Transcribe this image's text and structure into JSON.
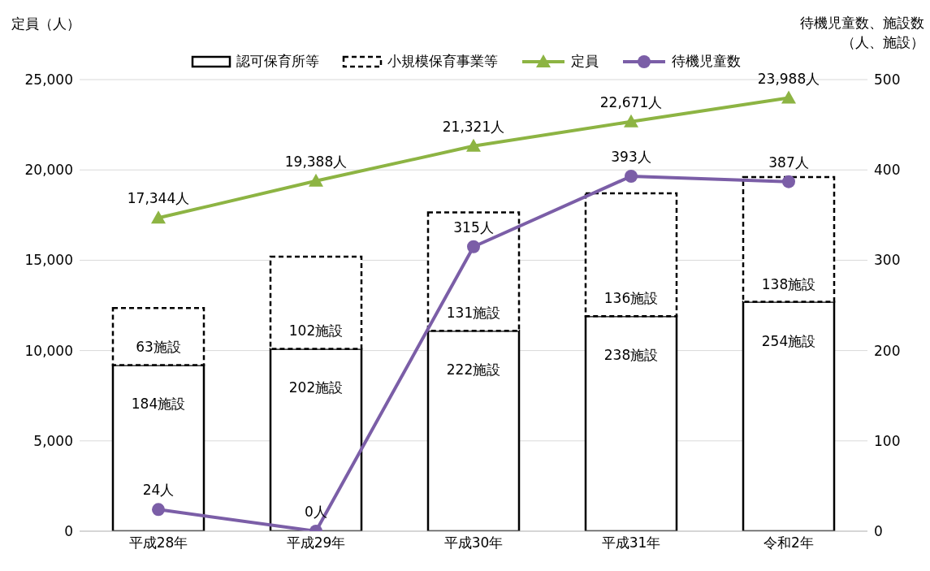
{
  "chart_data": {
    "type": "bar",
    "ylabel": "定員（人）",
    "y2label": "待機児童数、施設数（人、施設）",
    "categories": [
      "平成28年",
      "平成29年",
      "平成30年",
      "平成31年",
      "令和2年"
    ],
    "stacked": true,
    "grid": "y",
    "legend": "top",
    "ylim": [
      0,
      25000
    ],
    "yticks": [
      {
        "value": 0,
        "label": "0"
      },
      {
        "value": 5000,
        "label": "5,000"
      },
      {
        "value": 10000,
        "label": "10,000"
      },
      {
        "value": 15000,
        "label": "15,000"
      },
      {
        "value": 20000,
        "label": "20,000"
      },
      {
        "value": 25000,
        "label": "25,000"
      }
    ],
    "y2lim": [
      0,
      500
    ],
    "y2ticks": [
      0,
      100,
      200,
      300,
      400,
      500
    ],
    "series": [
      {
        "name": "認可保育所等",
        "axis": "y2",
        "color": "#ffffff",
        "line_style": "solid",
        "values": [
          184,
          202,
          222,
          238,
          254
        ],
        "value_labels": [
          "184施設",
          "202施設",
          "222施設",
          "238施設",
          "254施設"
        ]
      },
      {
        "name": "小規模保育事業等",
        "axis": "y2",
        "color": "#ffffff",
        "line_style": "dashed",
        "values": [
          63,
          102,
          131,
          136,
          138
        ],
        "value_labels": [
          "63施設",
          "102施設",
          "131施設",
          "136施設",
          "138施設"
        ]
      },
      {
        "name": "定員",
        "type": "line",
        "color": "#8db443",
        "marker": "triangle",
        "values": [
          17344,
          19388,
          21321,
          22671,
          23988
        ],
        "value_labels": [
          "17,344人",
          "19,388人",
          "21,321人",
          "22,671人",
          "23,988人"
        ]
      },
      {
        "name": "待機児童数",
        "type": "line",
        "axis": "y2",
        "color": "#7b5ea7",
        "marker": "circle",
        "values": [
          24,
          0,
          315,
          393,
          387
        ],
        "value_labels": [
          "24人",
          "0人",
          "315人",
          "393人",
          "387人"
        ]
      }
    ]
  }
}
